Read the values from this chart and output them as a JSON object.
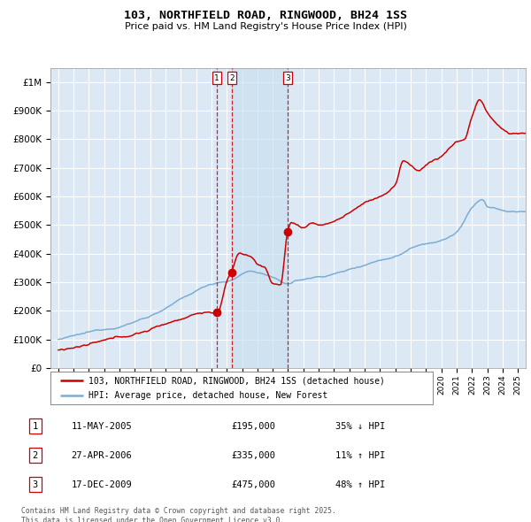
{
  "title": "103, NORTHFIELD ROAD, RINGWOOD, BH24 1SS",
  "subtitle": "Price paid vs. HM Land Registry's House Price Index (HPI)",
  "background_color": "#ffffff",
  "plot_bg_color": "#dce9f5",
  "grid_color": "#ffffff",
  "red_line_label": "103, NORTHFIELD ROAD, RINGWOOD, BH24 1SS (detached house)",
  "blue_line_label": "HPI: Average price, detached house, New Forest",
  "transactions": [
    {
      "num": 1,
      "date": "11-MAY-2005",
      "price": 195000,
      "pct": "35%",
      "dir": "↓",
      "x_year": 2005.37
    },
    {
      "num": 2,
      "date": "27-APR-2006",
      "price": 335000,
      "pct": "11%",
      "dir": "↑",
      "x_year": 2006.32
    },
    {
      "num": 3,
      "date": "17-DEC-2009",
      "price": 475000,
      "pct": "48%",
      "dir": "↑",
      "x_year": 2009.96
    }
  ],
  "footer": "Contains HM Land Registry data © Crown copyright and database right 2025.\nThis data is licensed under the Open Government Licence v3.0.",
  "ylim": [
    0,
    1050000
  ],
  "yticks": [
    0,
    100000,
    200000,
    300000,
    400000,
    500000,
    600000,
    700000,
    800000,
    900000,
    1000000
  ],
  "ytick_labels": [
    "£0",
    "£100K",
    "£200K",
    "£300K",
    "£400K",
    "£500K",
    "£600K",
    "£700K",
    "£800K",
    "£900K",
    "£1M"
  ],
  "xlim_start": 1994.5,
  "xlim_end": 2025.5,
  "red_color": "#cc0000",
  "blue_color": "#7aadd4",
  "dot_color": "#cc0000",
  "vline_color": "#cc0000",
  "shade_color": "#c8dff0",
  "row_data": [
    [
      1,
      "11-MAY-2005",
      "£195,000",
      "35% ↓ HPI"
    ],
    [
      2,
      "27-APR-2006",
      "£335,000",
      "11% ↑ HPI"
    ],
    [
      3,
      "17-DEC-2009",
      "£475,000",
      "48% ↑ HPI"
    ]
  ]
}
